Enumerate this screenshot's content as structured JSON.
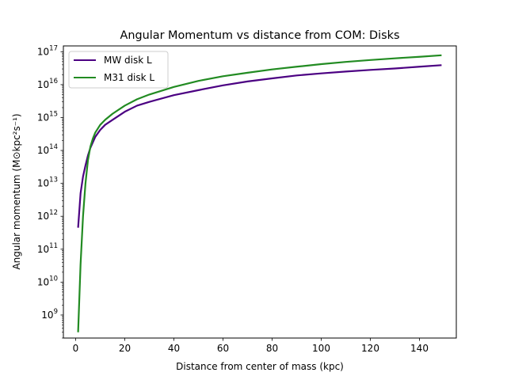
{
  "chart_data": {
    "type": "line",
    "title": "Angular Momentum vs distance from COM: Disks",
    "xlabel": "Distance from center of mass (kpc)",
    "ylabel": "Angular momentum (M⊙kpc²s⁻¹)",
    "xlim": [
      -5,
      155
    ],
    "ylim": [
      200000000.0,
      1.5e+17
    ],
    "yscale": "log",
    "x_ticks": [
      0,
      20,
      40,
      60,
      80,
      100,
      120,
      140
    ],
    "y_ticks": [
      {
        "value": 1000000000.0,
        "base": "10",
        "exp": "9"
      },
      {
        "value": 10000000000.0,
        "base": "10",
        "exp": "10"
      },
      {
        "value": 100000000000.0,
        "base": "10",
        "exp": "11"
      },
      {
        "value": 1000000000000.0,
        "base": "10",
        "exp": "12"
      },
      {
        "value": 10000000000000.0,
        "base": "10",
        "exp": "13"
      },
      {
        "value": 100000000000000.0,
        "base": "10",
        "exp": "14"
      },
      {
        "value": 1000000000000000.0,
        "base": "10",
        "exp": "15"
      },
      {
        "value": 1e+16,
        "base": "10",
        "exp": "16"
      },
      {
        "value": 1e+17,
        "base": "10",
        "exp": "17"
      }
    ],
    "grid": false,
    "legend_position": "top-left",
    "series": [
      {
        "name": "MW disk L",
        "color": "#4b0082",
        "x": [
          1,
          2,
          3,
          4,
          5,
          6,
          8,
          10,
          12,
          15,
          20,
          25,
          30,
          40,
          50,
          60,
          70,
          80,
          90,
          100,
          110,
          120,
          130,
          140,
          149
        ],
        "y": [
          450000000000.0,
          5000000000000.0,
          16000000000000.0,
          35000000000000.0,
          70000000000000.0,
          120000000000000.0,
          260000000000000.0,
          420000000000000.0,
          600000000000000.0,
          850000000000000.0,
          1500000000000000.0,
          2300000000000000.0,
          3000000000000000.0,
          4800000000000000.0,
          6800000000000000.0,
          9500000000000000.0,
          1.25e+16,
          1.55e+16,
          1.9e+16,
          2.2e+16,
          2.5e+16,
          2.8e+16,
          3.1e+16,
          3.5e+16,
          3.9e+16
        ]
      },
      {
        "name": "M31 disk L",
        "color": "#228b22",
        "x": [
          1,
          2,
          3,
          4,
          5,
          6,
          7,
          8,
          10,
          12,
          15,
          20,
          25,
          30,
          40,
          50,
          60,
          70,
          80,
          90,
          100,
          110,
          120,
          130,
          140,
          149
        ],
        "y": [
          300000000.0,
          35000000000.0,
          1000000000000.0,
          10000000000000.0,
          50000000000000.0,
          130000000000000.0,
          230000000000000.0,
          350000000000000.0,
          600000000000000.0,
          850000000000000.0,
          1300000000000000.0,
          2300000000000000.0,
          3600000000000000.0,
          5000000000000000.0,
          8500000000000000.0,
          1.3e+16,
          1.8e+16,
          2.3e+16,
          2.9e+16,
          3.5e+16,
          4.2e+16,
          4.9e+16,
          5.6e+16,
          6.3e+16,
          7e+16,
          7.8e+16
        ]
      }
    ]
  }
}
